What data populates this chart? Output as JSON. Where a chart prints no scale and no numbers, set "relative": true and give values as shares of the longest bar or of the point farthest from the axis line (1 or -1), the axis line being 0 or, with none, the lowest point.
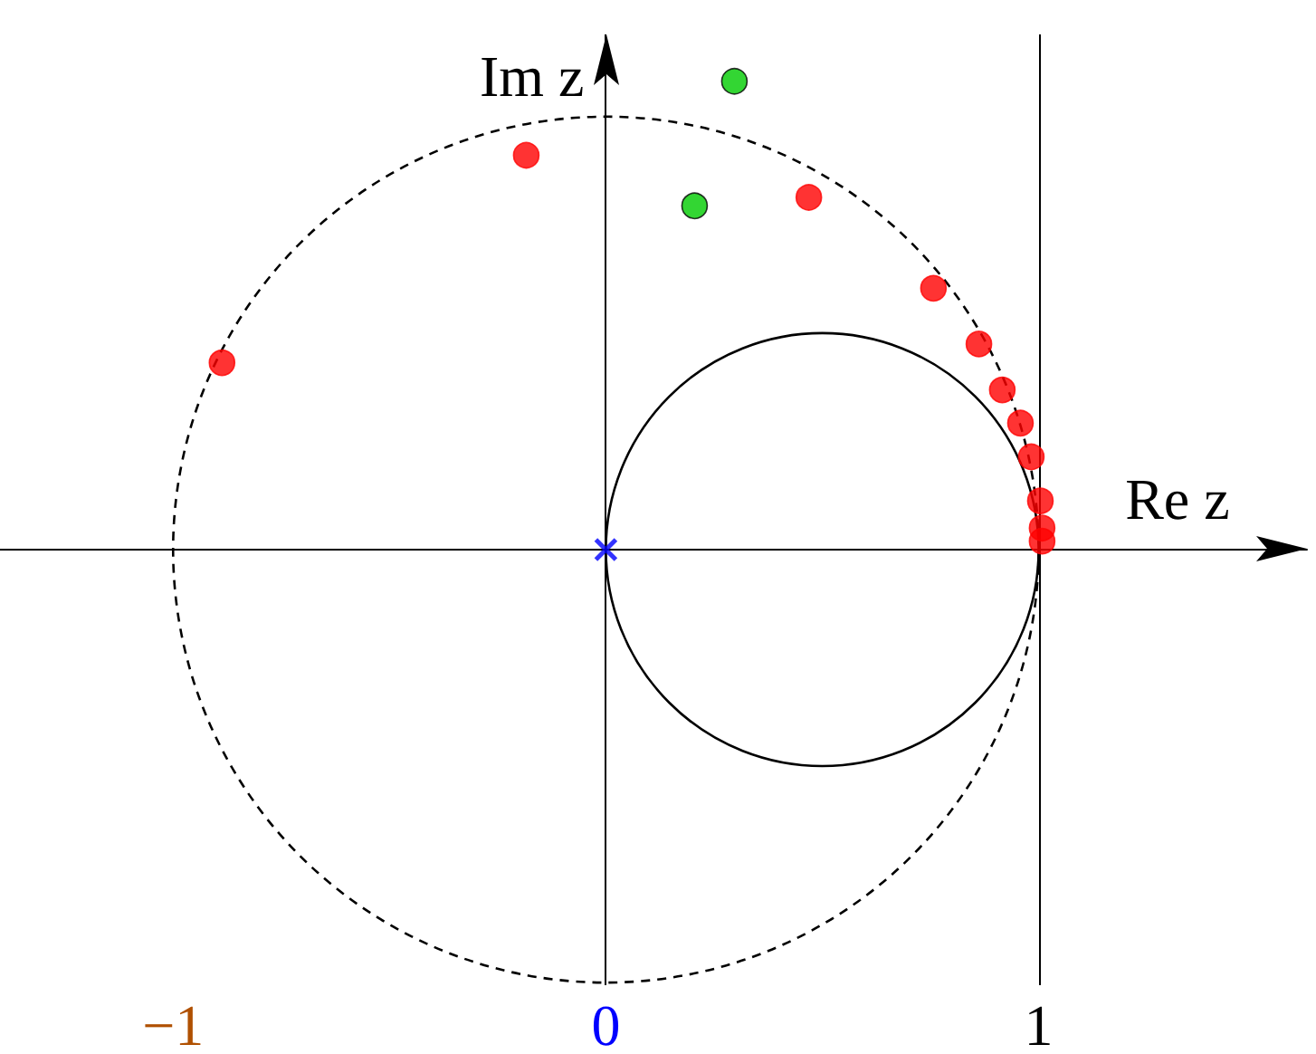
{
  "chart_data": {
    "type": "scatter",
    "xlabel": "Re z",
    "ylabel": "Im z",
    "relative": true,
    "xlim": [
      -1.4,
      1.62
    ],
    "xticks": [
      {
        "value": -1,
        "label": "−1"
      },
      0,
      1
    ],
    "tick_labels": "x",
    "ref_lines": [
      {
        "axis": "x",
        "value": 0,
        "color": "#000000",
        "line_style": "solid"
      },
      {
        "axis": "x",
        "value": 1,
        "color": "#000000",
        "line_style": "solid"
      }
    ],
    "series": [
      {
        "color": "#ff0000",
        "marker": "circle",
        "x": [
          -0.887,
          -0.184,
          0.469,
          0.757,
          0.862,
          0.916,
          0.958,
          0.983,
          1.004,
          1.008,
          1.008
        ],
        "values": [
          0.399,
          0.842,
          0.752,
          0.558,
          0.439,
          0.341,
          0.27,
          0.198,
          0.104,
          0.046,
          0.018
        ]
      },
      {
        "color": "#00cc00",
        "marker": "circle",
        "x": [
          0.297,
          0.205
        ],
        "values": [
          1,
          0.734
        ]
      },
      {
        "color": "#0000ff",
        "marker": "cross",
        "x": [
          0
        ],
        "values": [
          0
        ]
      }
    ]
  }
}
